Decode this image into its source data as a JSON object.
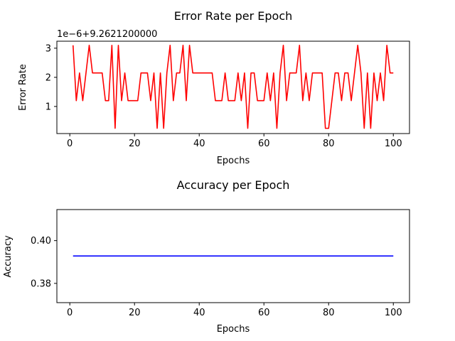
{
  "chart_data": [
    {
      "type": "line",
      "title": "Error Rate per Epoch",
      "xlabel": "Epochs",
      "ylabel": "Error Rate",
      "offset_label": "1e−6+9.2621200000",
      "xlim": [
        -4,
        105
      ],
      "ylim": [
        0.07,
        3.24
      ],
      "xticks": [
        0,
        20,
        40,
        60,
        80,
        100
      ],
      "yticks": [
        1,
        2,
        3
      ],
      "grid": false,
      "color": "#ff0000",
      "series": [
        {
          "x": [
            1,
            2,
            3,
            4,
            5,
            6,
            7,
            8,
            9,
            10,
            11,
            12,
            13,
            14,
            15,
            16,
            17,
            18,
            19,
            20,
            21,
            22,
            23,
            24,
            25,
            26,
            27,
            28,
            29,
            30,
            31,
            32,
            33,
            34,
            35,
            36,
            37,
            38,
            39,
            40,
            41,
            42,
            43,
            44,
            45,
            46,
            47,
            48,
            49,
            50,
            51,
            52,
            53,
            54,
            55,
            56,
            57,
            58,
            59,
            60,
            61,
            62,
            63,
            64,
            65,
            66,
            67,
            68,
            69,
            70,
            71,
            72,
            73,
            74,
            75,
            76,
            77,
            78,
            79,
            80,
            81,
            82,
            83,
            84,
            85,
            86,
            87,
            88,
            89,
            90,
            91,
            92,
            93,
            94,
            95,
            96,
            97,
            98,
            99,
            100
          ],
          "values": [
            3.1,
            1.2,
            2.15,
            1.2,
            2.15,
            3.1,
            2.15,
            2.15,
            2.15,
            2.15,
            1.2,
            1.2,
            3.1,
            0.25,
            3.1,
            1.2,
            2.15,
            1.2,
            1.2,
            1.2,
            1.2,
            2.15,
            2.15,
            2.15,
            1.2,
            2.15,
            0.25,
            2.15,
            0.25,
            2.15,
            3.1,
            1.2,
            2.15,
            2.15,
            3.1,
            1.2,
            3.1,
            2.15,
            2.15,
            2.15,
            2.15,
            2.15,
            2.15,
            2.15,
            1.2,
            1.2,
            1.2,
            2.15,
            1.2,
            1.2,
            1.2,
            2.15,
            1.2,
            2.15,
            0.25,
            2.15,
            2.15,
            1.2,
            1.2,
            1.2,
            2.15,
            1.2,
            2.15,
            0.25,
            2.15,
            3.1,
            1.2,
            2.15,
            2.15,
            2.15,
            3.1,
            1.2,
            2.15,
            1.2,
            2.15,
            2.15,
            2.15,
            2.15,
            0.25,
            0.25,
            1.2,
            2.15,
            2.15,
            1.2,
            2.15,
            2.15,
            1.2,
            2.15,
            3.1,
            2.15,
            0.25,
            2.15,
            0.25,
            2.15,
            1.2,
            2.15,
            1.2,
            3.1,
            2.15,
            2.15
          ]
        }
      ]
    },
    {
      "type": "line",
      "title": "Accuracy per Epoch",
      "xlabel": "Epochs",
      "ylabel": "Accuracy",
      "xlim": [
        -4,
        105
      ],
      "ylim": [
        0.371,
        0.4145
      ],
      "xticks": [
        0,
        20,
        40,
        60,
        80,
        100
      ],
      "yticks": [
        0.38,
        0.4
      ],
      "ytick_labels": [
        "0.38",
        "0.40"
      ],
      "grid": false,
      "color": "#0000ff",
      "series": [
        {
          "x": [
            1,
            100
          ],
          "values": [
            0.3928,
            0.3928
          ]
        }
      ]
    }
  ]
}
